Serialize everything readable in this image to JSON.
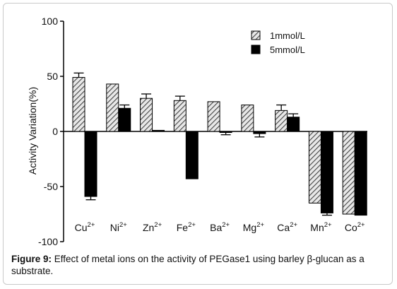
{
  "chart_data": {
    "type": "bar",
    "title": "",
    "xlabel": "",
    "ylabel": "Activity Variation(%)",
    "ylim": [
      -100,
      100
    ],
    "yticks": [
      -100,
      -50,
      0,
      50,
      100
    ],
    "categories": [
      {
        "base": "Cu",
        "sup": "2+"
      },
      {
        "base": "Ni",
        "sup": "2+"
      },
      {
        "base": "Zn",
        "sup": "2+"
      },
      {
        "base": "Fe",
        "sup": "2+"
      },
      {
        "base": "Ba",
        "sup": "2+"
      },
      {
        "base": "Mg",
        "sup": "2+"
      },
      {
        "base": "Ca",
        "sup": "2+"
      },
      {
        "base": "Mn",
        "sup": "2+"
      },
      {
        "base": "Co",
        "sup": "2+"
      }
    ],
    "series": [
      {
        "name": "1mmol/L",
        "pattern": "hatched",
        "values": [
          49,
          43,
          30,
          28,
          27,
          24,
          19,
          -65,
          -75
        ],
        "errors": [
          4,
          0,
          4,
          4,
          0,
          0,
          5,
          0,
          0
        ]
      },
      {
        "name": "5mmol/L",
        "pattern": "solid",
        "values": [
          -59,
          21,
          1,
          -43,
          -1,
          -2,
          13,
          -74,
          -76
        ],
        "errors": [
          3,
          3,
          0,
          0,
          2,
          3,
          3,
          2,
          0
        ]
      }
    ],
    "legend_position": "top-right",
    "grid": false,
    "colors": {
      "solid": "#000000",
      "hatch": "#444444",
      "hatch_bg": "#e8e8e8"
    }
  },
  "caption": {
    "label": "Figure 9:",
    "text": " Effect of metal ions on the activity of PEGase1 using barley β-glucan as a substrate."
  }
}
